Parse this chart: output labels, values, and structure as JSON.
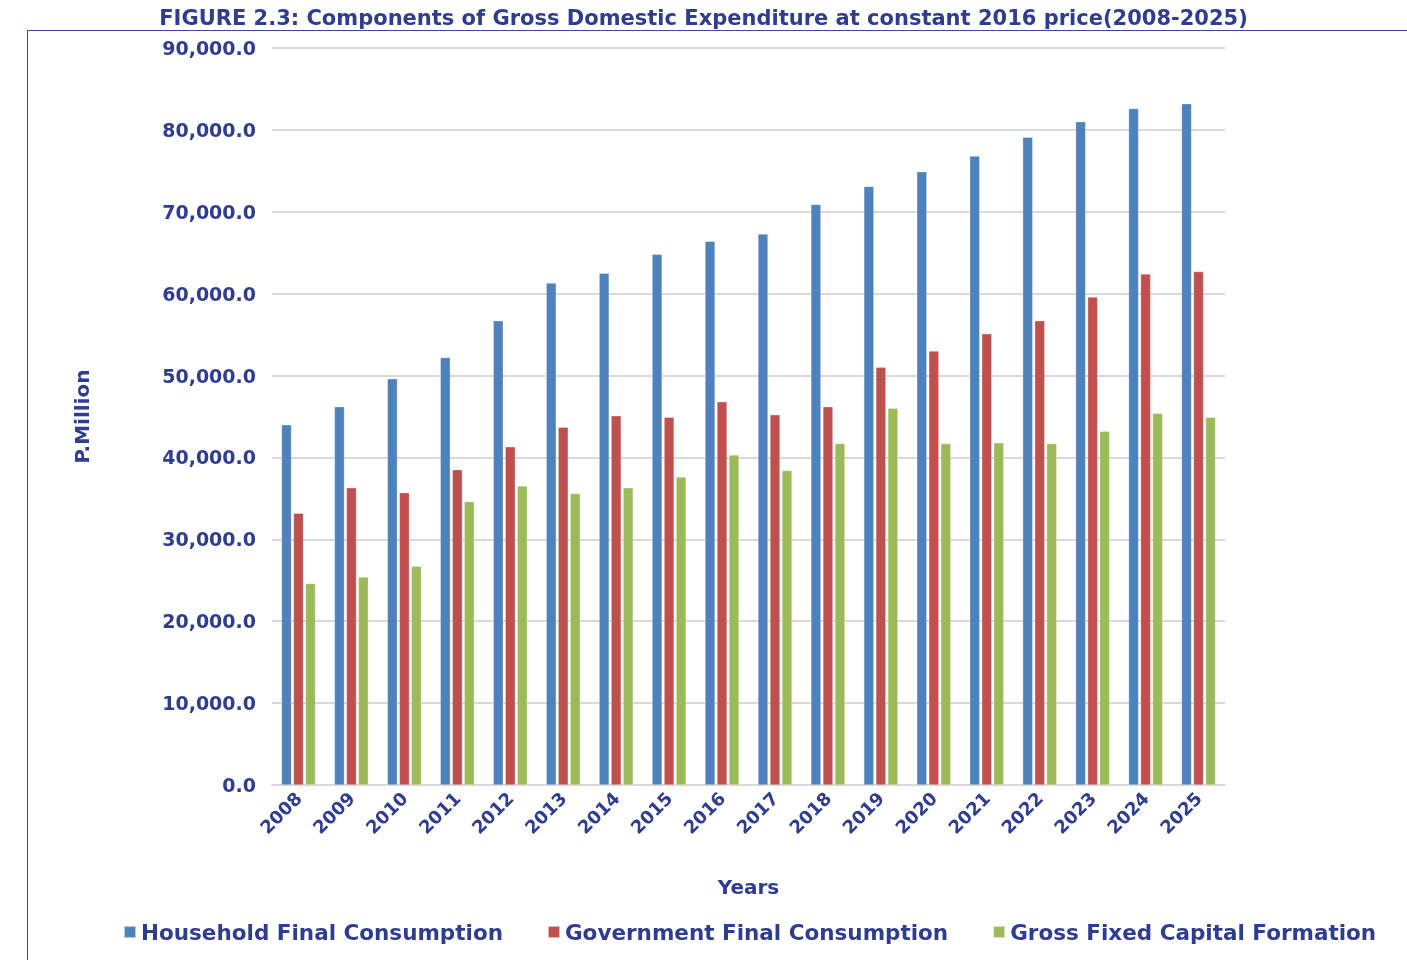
{
  "chart_data": {
    "type": "bar",
    "title": "FIGURE 2.3: Components of Gross Domestic Expenditure at constant 2016 price(2008-2025)",
    "xlabel": "Years",
    "ylabel": "P.Million",
    "categories": [
      "2008",
      "2009",
      "2010",
      "2011",
      "2012",
      "2013",
      "2014",
      "2015",
      "2016",
      "2017",
      "2018",
      "2019",
      "2020",
      "2021",
      "2022",
      "2023",
      "2024",
      "2025"
    ],
    "series": [
      {
        "name": "Household Final Consumption",
        "color": "#4f81bd",
        "values": [
          44000,
          46200,
          49600,
          52200,
          56700,
          61300,
          62500,
          64800,
          66400,
          67300,
          70900,
          73100,
          74900,
          76800,
          79100,
          81000,
          82600,
          83200
        ]
      },
      {
        "name": "Government Final Consumption",
        "color": "#c0504d",
        "values": [
          33200,
          36300,
          35700,
          38500,
          41300,
          43700,
          45100,
          44900,
          46800,
          45200,
          46200,
          51000,
          53000,
          55100,
          56700,
          59600,
          62400,
          62700
        ]
      },
      {
        "name": "Gross Fixed Capital Formation",
        "color": "#9bbb59",
        "values": [
          24600,
          25400,
          26700,
          34600,
          36500,
          35600,
          36300,
          37600,
          40300,
          38400,
          41700,
          46000,
          41700,
          41800,
          41700,
          43200,
          45400,
          44900
        ]
      }
    ],
    "ylim": [
      0,
      90000
    ],
    "yticks": [
      {
        "value": 0,
        "label": "0.0"
      },
      {
        "value": 10000,
        "label": "10,000.0"
      },
      {
        "value": 20000,
        "label": "20,000.0"
      },
      {
        "value": 30000,
        "label": "30,000.0"
      },
      {
        "value": 40000,
        "label": "40,000.0"
      },
      {
        "value": 50000,
        "label": "50,000.0"
      },
      {
        "value": 60000,
        "label": "60,000.0"
      },
      {
        "value": 70000,
        "label": "70,000.0"
      },
      {
        "value": 80000,
        "label": "80,000.0"
      },
      {
        "value": 90000,
        "label": "90,000.0"
      }
    ],
    "grid": "y",
    "legend": "bottom"
  }
}
